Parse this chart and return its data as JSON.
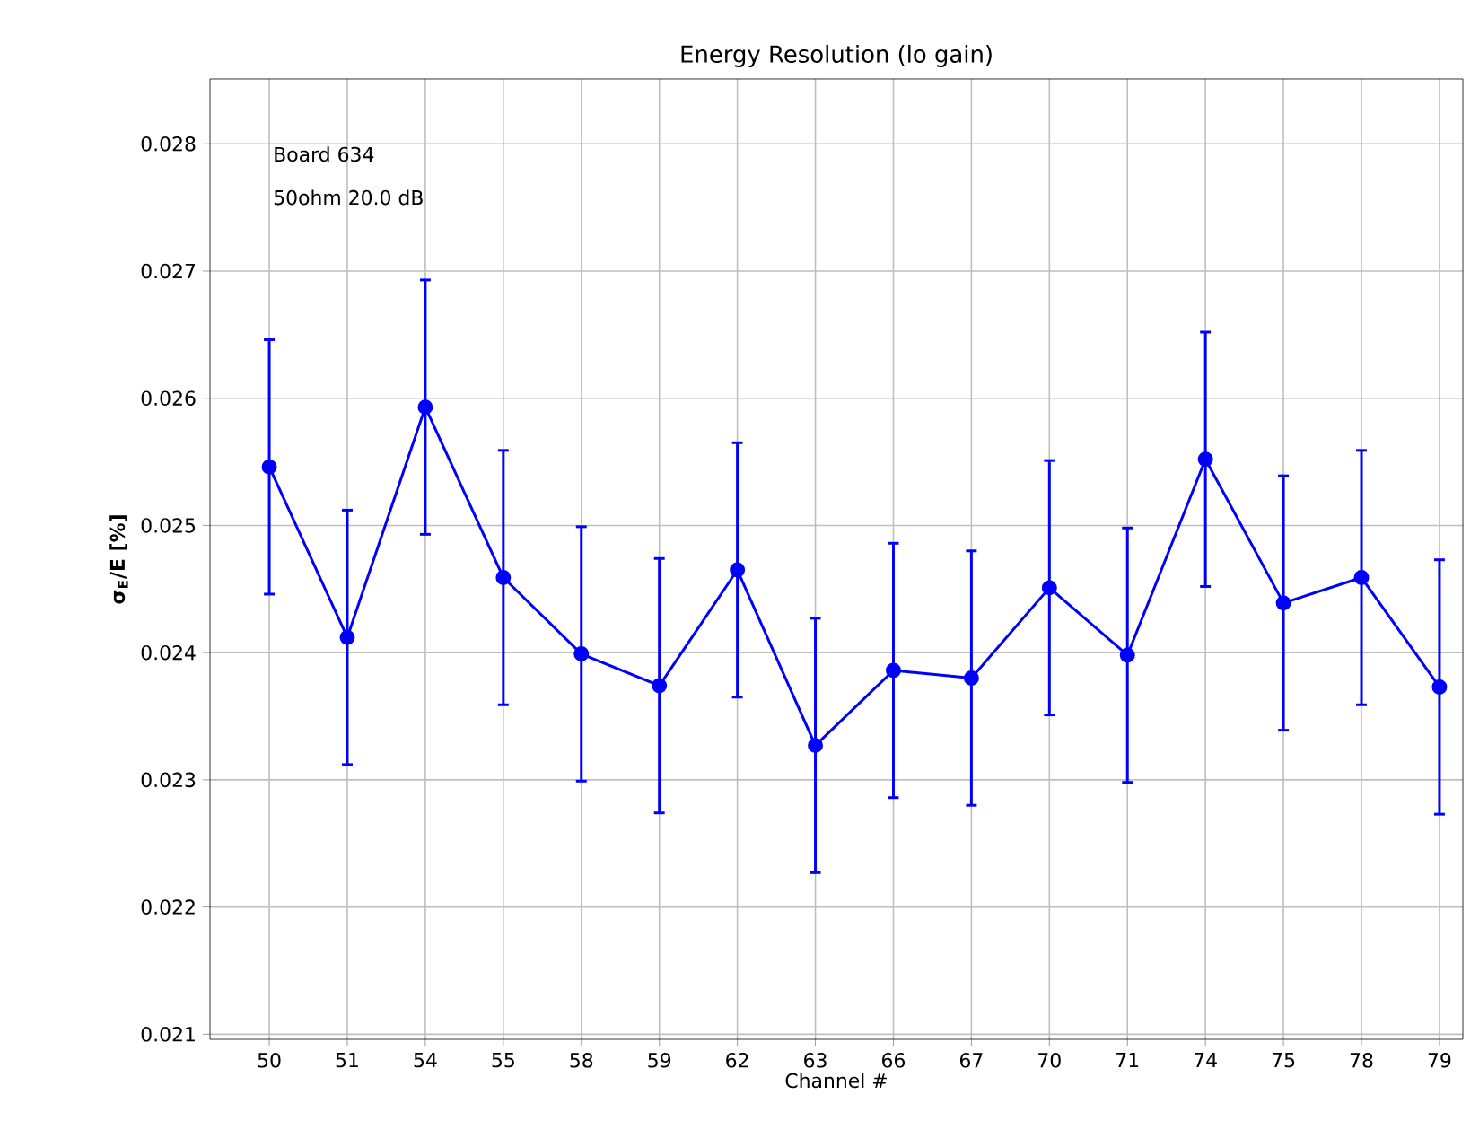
{
  "chart_data": {
    "type": "line",
    "title": "Energy Resolution (lo gain)",
    "xlabel": "Channel #",
    "ylabel": "**σ$_{E}$/E [%]**",
    "annotations": [
      "Board 634",
      "50ohm 20.0 dB"
    ],
    "categories": [
      "50",
      "51",
      "54",
      "55",
      "58",
      "59",
      "62",
      "63",
      "66",
      "67",
      "70",
      "71",
      "74",
      "75",
      "78",
      "79"
    ],
    "series": [
      {
        "color": "#0000ff",
        "values": [
          0.02546,
          0.02412,
          0.02593,
          0.02459,
          0.02399,
          0.02374,
          0.02465,
          0.02327,
          0.02386,
          0.0238,
          0.02451,
          0.02398,
          0.02552,
          0.02439,
          0.02459,
          0.02373
        ],
        "errors": [
          0.001,
          0.001,
          0.001,
          0.001,
          0.001,
          0.001,
          0.001,
          0.001,
          0.001,
          0.001,
          0.001,
          0.001,
          0.001,
          0.001,
          0.001,
          0.001
        ]
      }
    ],
    "ylim": [
      0.02096,
      0.02851
    ],
    "yticks": [
      0.021,
      0.022,
      0.023,
      0.024,
      0.025,
      0.026,
      0.027,
      0.028
    ],
    "grid": true,
    "marker": "circle",
    "line_style": "solid"
  }
}
